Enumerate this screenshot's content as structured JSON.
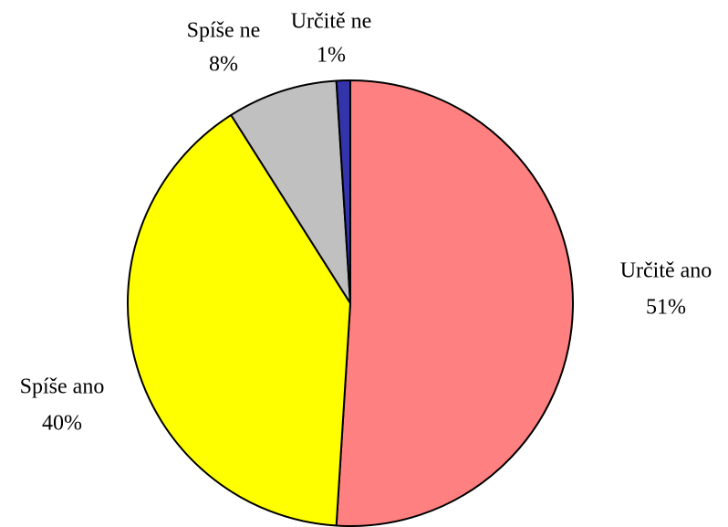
{
  "chart_data": {
    "type": "pie",
    "categories": [
      "Určitě ano",
      "Spíše ano",
      "Spíše ne",
      "Určitě ne"
    ],
    "values": [
      51,
      40,
      8,
      1
    ],
    "value_labels": [
      "51%",
      "40%",
      "8%",
      "1%"
    ],
    "colors": [
      "#ff8080",
      "#ffff00",
      "#c0c0c0",
      "#3333aa"
    ]
  }
}
